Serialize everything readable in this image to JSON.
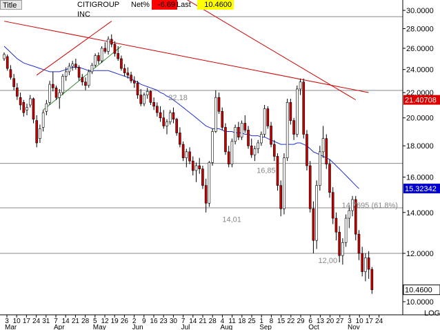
{
  "header": {
    "title_label": "Title",
    "instrument": "CITIGROUP INC",
    "net_label": "Net%",
    "net_value": "-6.69",
    "last_label": "Last",
    "last_value": "10.4600"
  },
  "colors": {
    "up": "#ffffff",
    "down": "#cc0000",
    "ma": "#1f2ecf",
    "trend_red": "#cc0000",
    "trend_green": "#2e8b2e",
    "grid": "#888888",
    "net_bg": "#ff0000",
    "last_bg": "#ffff00",
    "ma_label_bg": "#0000cc",
    "trend_label_bg": "#dd0000"
  },
  "chart_data": {
    "type": "candlestick",
    "scale": "log",
    "scale_label": "LOG",
    "ylim": [
      10,
      30
    ],
    "y_ticks": [
      "30.0000",
      "28.0000",
      "26.0000",
      "24.0000",
      "22.0000",
      "20.0000",
      "18.0000",
      "16.0000",
      "14.0000",
      "12.0000",
      "10.0000"
    ],
    "y_tick_values": [
      30,
      28,
      26,
      24,
      22,
      20,
      18,
      16,
      14,
      12,
      10
    ],
    "x_tick_labels": [
      "3",
      "10",
      "17",
      "24",
      "31",
      "7",
      "14",
      "21",
      "28",
      "5",
      "12",
      "19",
      "26",
      "2",
      "9",
      "16",
      "23",
      "30",
      "7",
      "14",
      "21",
      "28",
      "4",
      "11",
      "18",
      "25",
      "1",
      "8",
      "15",
      "22",
      "29",
      "6",
      "13",
      "20",
      "27",
      "3",
      "10",
      "17",
      "24"
    ],
    "months": [
      {
        "label": "Mar",
        "tick": 0
      },
      {
        "label": "Apr",
        "tick": 5
      },
      {
        "label": "May",
        "tick": 9
      },
      {
        "label": "Jun",
        "tick": 13
      },
      {
        "label": "Jul",
        "tick": 18
      },
      {
        "label": "Aug",
        "tick": 22
      },
      {
        "label": "Sep",
        "tick": 26
      },
      {
        "label": "Oct",
        "tick": 31
      },
      {
        "label": "Nov",
        "tick": 35
      }
    ],
    "horizontal_lines": [
      29.3,
      22.18,
      16.85,
      14.25,
      12.0
    ],
    "annotations": [
      {
        "text": "22,18",
        "tick": 16.5,
        "value": 22.18
      },
      {
        "text": "16,85",
        "tick": 25.5,
        "value": 16.85
      },
      {
        "text": "14,01",
        "tick": 22.0,
        "value": 14.01
      },
      {
        "text": "14.7695 (61.8%)",
        "tick": 34.2,
        "value": 14.7695
      },
      {
        "text": "12,00",
        "tick": 31.8,
        "value": 12.0
      }
    ],
    "value_labels": [
      {
        "text": "21.40708",
        "value": 21.40708,
        "kind": "trend"
      },
      {
        "text": "15.32342",
        "value": 15.32342,
        "kind": "ma"
      }
    ],
    "candles": [
      [
        25.0,
        25.6,
        24.8,
        25.4
      ],
      [
        25.2,
        25.4,
        23.9,
        24.1
      ],
      [
        24.0,
        24.4,
        23.1,
        23.3
      ],
      [
        23.2,
        23.6,
        22.2,
        22.5
      ],
      [
        22.4,
        22.8,
        21.4,
        21.7
      ],
      [
        21.6,
        22.0,
        20.6,
        21.0
      ],
      [
        21.2,
        21.4,
        20.1,
        20.4
      ],
      [
        20.6,
        21.1,
        20.2,
        20.8
      ],
      [
        21.0,
        21.8,
        20.8,
        21.5
      ],
      [
        21.5,
        21.6,
        19.6,
        19.9
      ],
      [
        19.8,
        20.2,
        17.9,
        18.2
      ],
      [
        18.5,
        19.5,
        18.2,
        19.2
      ],
      [
        19.3,
        20.6,
        19.0,
        20.4
      ],
      [
        20.5,
        21.4,
        20.2,
        21.1
      ],
      [
        21.2,
        23.0,
        21.0,
        22.7
      ],
      [
        22.7,
        23.8,
        22.1,
        22.4
      ],
      [
        22.4,
        22.6,
        21.4,
        21.6
      ],
      [
        21.6,
        22.3,
        20.7,
        22.0
      ],
      [
        22.0,
        23.6,
        21.8,
        23.4
      ],
      [
        23.4,
        24.2,
        23.0,
        23.8
      ],
      [
        23.8,
        24.6,
        23.5,
        24.3
      ],
      [
        24.3,
        24.8,
        23.9,
        24.5
      ],
      [
        24.5,
        25.0,
        24.0,
        24.2
      ],
      [
        24.2,
        24.4,
        23.0,
        23.3
      ],
      [
        23.3,
        23.6,
        22.6,
        22.9
      ],
      [
        22.9,
        23.3,
        22.2,
        22.6
      ],
      [
        22.6,
        24.0,
        22.4,
        23.8
      ],
      [
        23.8,
        24.6,
        23.6,
        24.4
      ],
      [
        24.4,
        25.5,
        24.2,
        25.3
      ],
      [
        25.3,
        25.6,
        24.5,
        24.8
      ],
      [
        24.8,
        26.2,
        24.6,
        26.0
      ],
      [
        26.0,
        26.6,
        25.5,
        25.7
      ],
      [
        25.7,
        27.2,
        25.4,
        26.9
      ],
      [
        26.9,
        27.4,
        26.1,
        26.4
      ],
      [
        26.4,
        26.7,
        25.2,
        25.5
      ],
      [
        25.5,
        26.2,
        24.8,
        25.0
      ],
      [
        25.0,
        25.3,
        23.9,
        24.1
      ],
      [
        24.1,
        24.5,
        23.4,
        23.7
      ],
      [
        23.7,
        24.2,
        23.2,
        23.5
      ],
      [
        23.5,
        23.8,
        22.8,
        23.0
      ],
      [
        23.0,
        23.4,
        22.4,
        22.8
      ],
      [
        22.8,
        23.0,
        21.5,
        21.8
      ],
      [
        21.8,
        22.3,
        20.9,
        21.1
      ],
      [
        21.1,
        22.0,
        20.9,
        21.8
      ],
      [
        21.8,
        22.4,
        21.5,
        22.1
      ],
      [
        22.1,
        22.2,
        21.0,
        21.2
      ],
      [
        21.2,
        21.6,
        20.6,
        20.9
      ],
      [
        20.9,
        21.2,
        20.1,
        20.4
      ],
      [
        20.4,
        20.9,
        19.7,
        20.0
      ],
      [
        20.0,
        20.6,
        19.2,
        19.4
      ],
      [
        19.4,
        19.9,
        18.8,
        19.7
      ],
      [
        19.7,
        20.6,
        19.5,
        20.4
      ],
      [
        20.4,
        20.8,
        19.6,
        19.9
      ],
      [
        19.9,
        20.0,
        18.7,
        18.9
      ],
      [
        18.9,
        19.3,
        17.9,
        18.1
      ],
      [
        18.1,
        18.3,
        17.0,
        17.2
      ],
      [
        17.2,
        17.8,
        16.6,
        17.6
      ],
      [
        17.6,
        17.9,
        16.8,
        17.0
      ],
      [
        17.0,
        17.3,
        16.1,
        16.4
      ],
      [
        16.4,
        16.9,
        15.7,
        16.7
      ],
      [
        16.7,
        17.2,
        16.2,
        16.5
      ],
      [
        16.5,
        16.7,
        15.3,
        15.5
      ],
      [
        15.5,
        15.9,
        14.0,
        14.5
      ],
      [
        14.5,
        17.0,
        14.3,
        16.9
      ],
      [
        16.9,
        19.2,
        16.7,
        19.0
      ],
      [
        19.0,
        22.2,
        18.9,
        21.6
      ],
      [
        21.6,
        22.0,
        20.3,
        20.5
      ],
      [
        20.5,
        20.8,
        19.1,
        19.3
      ],
      [
        19.3,
        19.6,
        17.4,
        17.6
      ],
      [
        17.6,
        18.0,
        16.6,
        16.8
      ],
      [
        16.8,
        18.5,
        16.6,
        18.3
      ],
      [
        18.3,
        19.5,
        18.1,
        19.3
      ],
      [
        19.3,
        19.7,
        18.4,
        18.6
      ],
      [
        18.6,
        19.8,
        18.4,
        19.6
      ],
      [
        19.6,
        20.2,
        18.9,
        19.1
      ],
      [
        19.1,
        19.4,
        17.8,
        18.0
      ],
      [
        18.0,
        18.5,
        17.2,
        17.4
      ],
      [
        17.4,
        18.0,
        17.0,
        17.8
      ],
      [
        17.8,
        18.4,
        17.5,
        18.2
      ],
      [
        18.2,
        19.0,
        18.0,
        18.8
      ],
      [
        18.8,
        21.0,
        18.6,
        20.7
      ],
      [
        20.7,
        20.9,
        19.2,
        19.4
      ],
      [
        19.4,
        19.7,
        17.9,
        18.1
      ],
      [
        18.1,
        18.4,
        17.0,
        17.3
      ],
      [
        17.3,
        17.5,
        15.2,
        15.5
      ],
      [
        15.5,
        15.8,
        13.8,
        14.2
      ],
      [
        14.2,
        17.5,
        13.9,
        17.2
      ],
      [
        17.2,
        21.5,
        17.0,
        21.2
      ],
      [
        21.2,
        21.5,
        19.5,
        19.8
      ],
      [
        19.8,
        20.0,
        18.4,
        18.8
      ],
      [
        18.8,
        22.6,
        18.6,
        22.3
      ],
      [
        22.3,
        23.2,
        21.8,
        22.9
      ],
      [
        22.9,
        23.2,
        18.5,
        18.8
      ],
      [
        18.8,
        19.1,
        16.4,
        16.7
      ],
      [
        16.7,
        17.0,
        14.0,
        14.2
      ],
      [
        14.2,
        14.6,
        12.0,
        12.6
      ],
      [
        12.6,
        15.8,
        12.2,
        15.5
      ],
      [
        15.5,
        18.0,
        15.2,
        17.6
      ],
      [
        17.6,
        19.4,
        17.2,
        18.5
      ],
      [
        18.5,
        18.8,
        16.5,
        16.8
      ],
      [
        16.8,
        17.1,
        14.8,
        15.1
      ],
      [
        15.1,
        15.4,
        13.4,
        13.7
      ],
      [
        13.7,
        14.0,
        12.6,
        13.0
      ],
      [
        13.0,
        13.3,
        11.6,
        11.9
      ],
      [
        11.9,
        12.7,
        11.5,
        12.5
      ],
      [
        12.5,
        13.9,
        12.3,
        13.7
      ],
      [
        13.7,
        14.4,
        13.2,
        14.1
      ],
      [
        14.1,
        14.9,
        13.8,
        14.7
      ],
      [
        14.7,
        14.9,
        12.6,
        12.9
      ],
      [
        12.9,
        13.1,
        11.7,
        12.0
      ],
      [
        12.0,
        12.3,
        11.0,
        11.2
      ],
      [
        11.2,
        12.0,
        10.8,
        11.8
      ],
      [
        11.8,
        12.1,
        10.9,
        11.3
      ],
      [
        11.3,
        11.4,
        10.3,
        10.46
      ]
    ],
    "moving_average": {
      "start_candle": 0,
      "values": [
        26.2,
        25.9,
        25.6,
        25.3,
        25.0,
        24.8,
        24.6,
        24.5,
        24.4,
        24.3,
        24.2,
        24.1,
        24.0,
        23.9,
        23.8,
        23.8,
        23.8,
        23.8,
        23.9,
        24.0,
        24.1,
        24.2,
        24.2,
        24.2,
        24.1,
        24.0,
        23.9,
        23.9,
        23.9,
        23.9,
        23.9,
        23.9,
        23.9,
        23.8,
        23.7,
        23.6,
        23.5,
        23.4,
        23.3,
        23.2,
        23.0,
        22.9,
        22.7,
        22.6,
        22.5,
        22.4,
        22.3,
        22.2,
        22.0,
        21.9,
        21.7,
        21.6,
        21.4,
        21.2,
        21.0,
        20.8,
        20.6,
        20.4,
        20.2,
        20.0,
        19.8,
        19.6,
        19.4,
        19.3,
        19.2,
        19.2,
        19.2,
        19.1,
        19.0,
        19.0,
        19.0,
        18.9,
        18.9,
        18.9,
        18.8,
        18.8,
        18.7,
        18.7,
        18.7,
        18.6,
        18.6,
        18.5,
        18.4,
        18.3,
        18.2,
        18.1,
        18.1,
        18.1,
        18.1,
        18.1,
        18.2,
        18.2,
        18.1,
        18.0,
        17.8,
        17.6,
        17.5,
        17.4,
        17.3,
        17.2,
        17.1,
        16.9,
        16.7,
        16.5,
        16.3,
        16.1,
        15.9,
        15.7,
        15.5,
        15.32342
      ]
    },
    "trendlines": [
      {
        "name": "long-downtrend",
        "color": "trend_red",
        "from": {
          "candle": 0,
          "value": 28.8
        },
        "to": {
          "candle": 112,
          "value": 22.0
        }
      },
      {
        "name": "steep-downtrend",
        "color": "trend_red",
        "from": {
          "candle": 55,
          "value": 31.5
        },
        "to": {
          "candle": 108,
          "value": 21.40708
        }
      },
      {
        "name": "channel-upper",
        "color": "trend_red",
        "from": {
          "candle": 10,
          "value": 23.5
        },
        "to": {
          "candle": 33,
          "value": 28.8
        }
      },
      {
        "name": "channel-lower",
        "color": "trend_green",
        "from": {
          "candle": 12,
          "value": 20.6
        },
        "to": {
          "candle": 36,
          "value": 26.2
        }
      }
    ]
  }
}
